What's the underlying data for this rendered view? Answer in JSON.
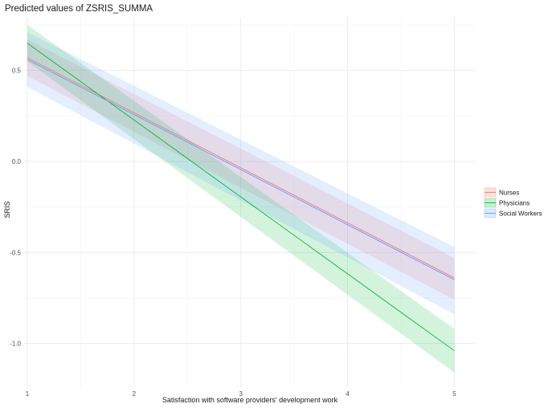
{
  "chart_data": {
    "type": "line",
    "title": "Predicted values of ZSRIS_SUMMA",
    "xlabel": "Satisfaction with software providers' development work",
    "ylabel": "SRIS",
    "xlim": [
      0.97,
      5.2
    ],
    "ylim": [
      -1.24,
      0.79
    ],
    "x_ticks": [
      1,
      2,
      3,
      4,
      5
    ],
    "x_tick_labels": [
      "1",
      "2",
      "3",
      "4",
      "5"
    ],
    "y_ticks": [
      0.5,
      0.0,
      -0.5,
      -1.0
    ],
    "y_tick_labels": [
      "0.5",
      "0.0",
      "-0.5",
      "-1.0"
    ],
    "grid": true,
    "legend_position": "right",
    "series": [
      {
        "name": "Nurses",
        "color": "#F8766D",
        "x": [
          1,
          5
        ],
        "y": [
          0.57,
          -0.64
        ],
        "ci_lower": [
          0.47,
          -0.76
        ],
        "ci_upper": [
          0.67,
          -0.53
        ]
      },
      {
        "name": "Physicians",
        "color": "#00BA38",
        "x": [
          1,
          5
        ],
        "y": [
          0.65,
          -1.04
        ],
        "ci_lower": [
          0.55,
          -1.16
        ],
        "ci_upper": [
          0.75,
          -0.92
        ]
      },
      {
        "name": "Social Workers",
        "color": "#619CFF",
        "x": [
          1,
          5
        ],
        "y": [
          0.56,
          -0.65
        ],
        "ci_lower": [
          0.41,
          -0.84
        ],
        "ci_upper": [
          0.71,
          -0.47
        ]
      }
    ]
  }
}
